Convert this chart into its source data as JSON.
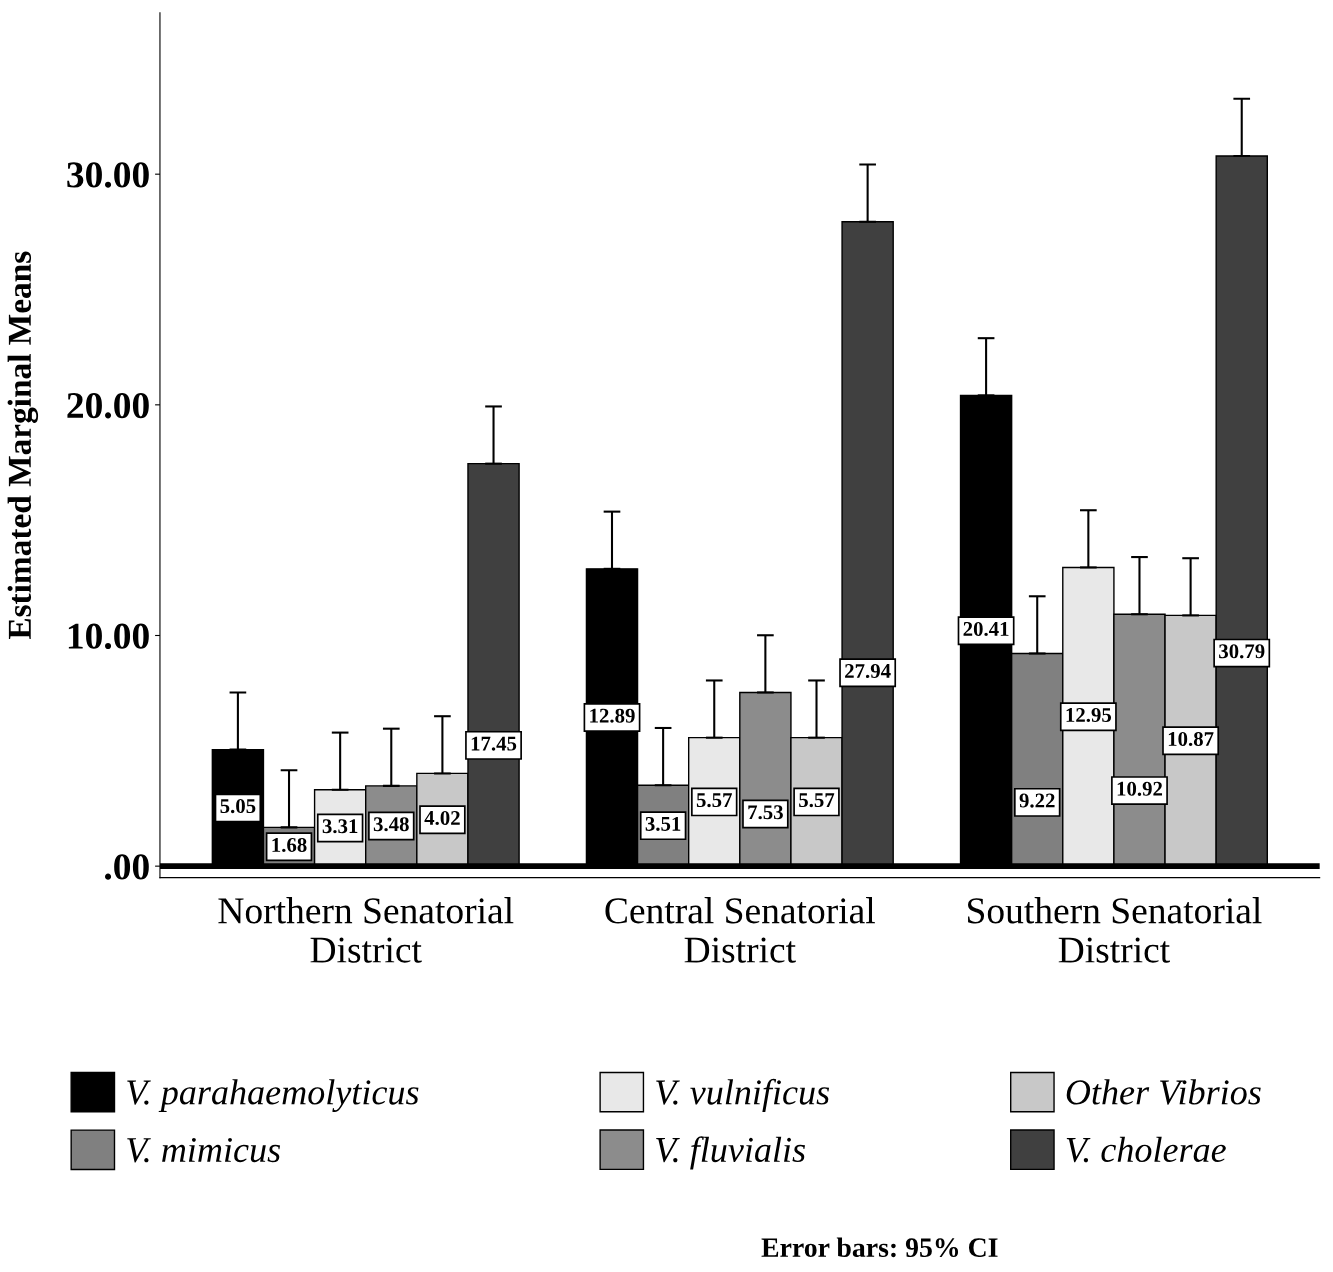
{
  "chart_data": {
    "type": "bar",
    "ylabel": "Estimated Marginal Means",
    "categories": [
      "Northern Senatorial\nDistrict",
      "Central Senatorial\nDistrict",
      "Southern Senatorial\nDistrict"
    ],
    "series": [
      {
        "name": "V. parahaemolyticus",
        "color": "#000000",
        "values": [
          5.05,
          12.89,
          20.41
        ],
        "errors": [
          2.48,
          2.48,
          2.48
        ]
      },
      {
        "name": "V. mimicus",
        "color": "#808080",
        "values": [
          1.68,
          3.51,
          9.22
        ],
        "errors": [
          2.48,
          2.48,
          2.48
        ]
      },
      {
        "name": "V. vulnificus",
        "color": "#e8e8e8",
        "values": [
          3.31,
          5.57,
          12.95
        ],
        "errors": [
          2.48,
          2.48,
          2.48
        ]
      },
      {
        "name": "V. fluvialis",
        "color": "#8c8c8c",
        "values": [
          3.48,
          7.53,
          10.92
        ],
        "errors": [
          2.48,
          2.48,
          2.48
        ]
      },
      {
        "name": "Other Vibrios",
        "color": "#c8c8c8",
        "values": [
          4.02,
          5.57,
          10.87
        ],
        "errors": [
          2.48,
          2.48,
          2.48
        ]
      },
      {
        "name": "V. cholerae",
        "color": "#404040",
        "values": [
          17.45,
          27.94,
          30.79
        ],
        "errors": [
          2.48,
          2.48,
          2.48
        ]
      }
    ],
    "ylim": [
      -0.5,
      37
    ],
    "yticks": [
      {
        "value": 0,
        "label": ".00"
      },
      {
        "value": 10,
        "label": "10.00"
      },
      {
        "value": 20,
        "label": "20.00"
      },
      {
        "value": 30,
        "label": "30.00"
      }
    ],
    "ref_lines": [
      {
        "axis": "y",
        "value": 0,
        "color": "#000000"
      }
    ],
    "data_labels": true,
    "grid": false,
    "legend": "bottom",
    "annotations": [
      "Error bars: 95% CI"
    ]
  }
}
